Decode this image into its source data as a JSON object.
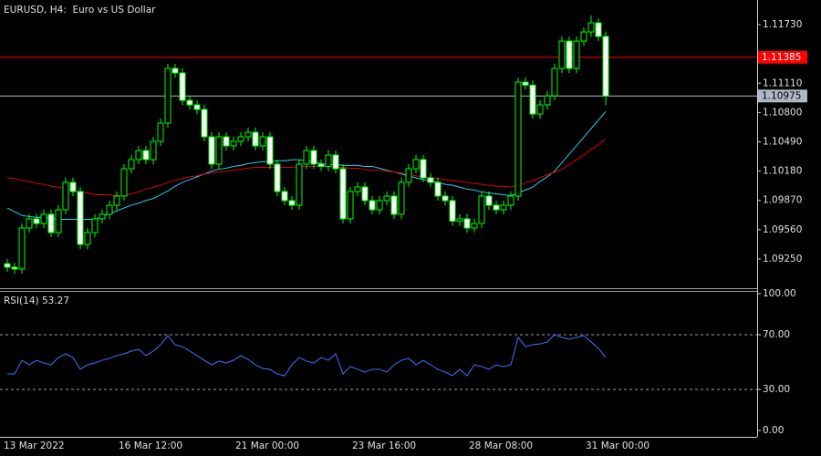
{
  "chart_data": [
    {
      "type": "candlestick",
      "title": "EURUSD, H4:  Euro vs US Dollar",
      "categories": [
        "13 Mar 2022",
        null,
        null,
        null,
        null,
        null,
        null,
        null,
        null,
        null,
        null,
        null,
        null,
        null,
        null,
        null,
        "16 Mar 12:00",
        null,
        null,
        null,
        null,
        null,
        null,
        null,
        null,
        null,
        null,
        null,
        null,
        null,
        null,
        null,
        "21 Mar 00:00",
        null,
        null,
        null,
        null,
        null,
        null,
        null,
        null,
        null,
        null,
        null,
        null,
        null,
        null,
        null,
        "23 Mar 16:00",
        null,
        null,
        null,
        null,
        null,
        null,
        null,
        null,
        null,
        null,
        null,
        null,
        null,
        null,
        null,
        "28 Mar 08:00",
        null,
        null,
        null,
        null,
        null,
        null,
        null,
        null,
        null,
        null,
        null,
        null,
        null,
        null,
        null,
        "31 Mar 00:00",
        null,
        null
      ],
      "open": [
        1.092,
        1.09163,
        1.09144,
        1.09578,
        1.09675,
        1.09626,
        1.09723,
        1.0953,
        1.09771,
        1.10061,
        1.09964,
        1.09404,
        1.0953,
        1.09675,
        1.09723,
        1.09819,
        1.09916,
        1.10205,
        1.10302,
        1.10398,
        1.10302,
        1.10495,
        1.10688,
        1.11267,
        1.11219,
        1.10929,
        1.10881,
        1.10833,
        1.10543,
        1.10254,
        1.10543,
        1.10447,
        1.10495,
        1.10543,
        1.10591,
        1.10447,
        1.10543,
        1.10254,
        1.09964,
        1.09868,
        1.09819,
        1.10254,
        1.10398,
        1.10254,
        1.1023,
        1.1035,
        1.10205,
        1.09675,
        1.09964,
        1.10012,
        1.09868,
        1.09771,
        1.09868,
        1.09916,
        1.09723,
        1.10061,
        1.10205,
        1.10302,
        1.10109,
        1.10061,
        1.09916,
        1.09868,
        1.0965,
        1.09675,
        1.09578,
        1.09626,
        1.09916,
        1.09819,
        1.09771,
        1.09819,
        1.09916,
        1.11122,
        1.1109,
        1.10784,
        1.10881,
        1.10977,
        1.11267,
        1.11556,
        1.11267,
        1.11556,
        1.11653,
        1.11749,
        1.11605
      ],
      "high": [
        1.0925,
        1.09213,
        1.09628,
        1.09725,
        1.09725,
        1.09773,
        1.09773,
        1.09821,
        1.10111,
        1.10111,
        1.10014,
        1.0958,
        1.09725,
        1.09773,
        1.09869,
        1.09966,
        1.10255,
        1.10352,
        1.10448,
        1.10448,
        1.10545,
        1.10738,
        1.11317,
        1.11317,
        1.11269,
        1.10979,
        1.10931,
        1.10883,
        1.10593,
        1.10593,
        1.10593,
        1.10545,
        1.10593,
        1.10641,
        1.10641,
        1.10593,
        1.10593,
        1.10304,
        1.10014,
        1.09918,
        1.10304,
        1.10448,
        1.10448,
        1.10304,
        1.104,
        1.104,
        1.10255,
        1.10014,
        1.10062,
        1.10062,
        1.09918,
        1.09918,
        1.09966,
        1.09966,
        1.10111,
        1.10255,
        1.10352,
        1.10352,
        1.10159,
        1.10111,
        1.09966,
        1.09918,
        1.09725,
        1.09725,
        1.09676,
        1.09966,
        1.09966,
        1.09869,
        1.09869,
        1.09966,
        1.11172,
        1.11172,
        1.1114,
        1.10931,
        1.11027,
        1.11317,
        1.11606,
        1.11606,
        1.11606,
        1.11703,
        1.11829,
        1.11799,
        1.11655
      ],
      "low": [
        1.09113,
        1.09094,
        1.09094,
        1.09528,
        1.09576,
        1.09576,
        1.0948,
        1.0948,
        1.09721,
        1.09914,
        1.09354,
        1.09354,
        1.0948,
        1.09625,
        1.09673,
        1.09769,
        1.09866,
        1.10155,
        1.10252,
        1.10252,
        1.10252,
        1.10445,
        1.10638,
        1.11169,
        1.10879,
        1.10831,
        1.10783,
        1.10493,
        1.10204,
        1.10204,
        1.10397,
        1.10397,
        1.10445,
        1.10493,
        1.10397,
        1.10397,
        1.10204,
        1.09914,
        1.09818,
        1.09769,
        1.09769,
        1.10204,
        1.10204,
        1.1018,
        1.1018,
        1.10155,
        1.09625,
        1.09625,
        1.09914,
        1.09818,
        1.09721,
        1.09721,
        1.09818,
        1.09673,
        1.09673,
        1.10011,
        1.10155,
        1.10059,
        1.10011,
        1.09866,
        1.09818,
        1.096,
        1.096,
        1.09528,
        1.09528,
        1.09576,
        1.09769,
        1.09721,
        1.09721,
        1.09769,
        1.09866,
        1.1104,
        1.10734,
        1.10734,
        1.10831,
        1.10927,
        1.11217,
        1.11217,
        1.11217,
        1.11506,
        1.11603,
        1.11555,
        1.1088
      ],
      "close": [
        1.09163,
        1.09144,
        1.09578,
        1.09675,
        1.09626,
        1.09723,
        1.0953,
        1.09771,
        1.10061,
        1.09964,
        1.09404,
        1.0953,
        1.09675,
        1.09723,
        1.09819,
        1.09916,
        1.10205,
        1.10302,
        1.10398,
        1.10302,
        1.10495,
        1.10688,
        1.11267,
        1.11219,
        1.10929,
        1.10881,
        1.10833,
        1.10543,
        1.10254,
        1.10543,
        1.10447,
        1.10495,
        1.10543,
        1.10591,
        1.10447,
        1.10543,
        1.10254,
        1.09964,
        1.09868,
        1.09819,
        1.10254,
        1.10398,
        1.10254,
        1.1023,
        1.1035,
        1.10205,
        1.09675,
        1.09964,
        1.10012,
        1.09868,
        1.09771,
        1.09868,
        1.09916,
        1.09723,
        1.10061,
        1.10205,
        1.10302,
        1.10109,
        1.10061,
        1.09916,
        1.09868,
        1.0965,
        1.09675,
        1.09578,
        1.09626,
        1.09916,
        1.09819,
        1.09771,
        1.09819,
        1.09916,
        1.11122,
        1.1109,
        1.10784,
        1.10881,
        1.10977,
        1.11267,
        1.11556,
        1.11267,
        1.11556,
        1.11653,
        1.11749,
        1.11605,
        1.10975
      ],
      "line_color": "#00ff00",
      "up_fill": "#000000",
      "down_fill": "#ffffff",
      "overlays": [
        {
          "color": "#20d0f0",
          "values": [
            1.0979,
            1.0975,
            1.0971,
            1.097,
            1.0969,
            1.0969,
            1.0968,
            1.0967,
            1.0967,
            1.0967,
            1.0967,
            1.0967,
            1.0967,
            1.097,
            1.0973,
            1.0976,
            1.0979,
            1.0982,
            1.0984,
            1.0987,
            1.0989,
            1.0993,
            1.0997,
            1.1002,
            1.1006,
            1.1009,
            1.1012,
            1.1015,
            1.1018,
            1.102,
            1.1021,
            1.1023,
            1.1024,
            1.1026,
            1.1027,
            1.1028,
            1.1028,
            1.1029,
            1.1029,
            1.103,
            1.103,
            1.1029,
            1.1028,
            1.1026,
            1.1025,
            1.1025,
            1.1024,
            1.1024,
            1.1024,
            1.1023,
            1.1023,
            1.1021,
            1.1019,
            1.1017,
            1.1015,
            1.1013,
            1.1011,
            1.1009,
            1.1008,
            1.1006,
            1.1004,
            1.1003,
            1.1001,
            1.0999,
            1.0998,
            1.0996,
            1.0995,
            1.0994,
            1.0993,
            1.0992,
            1.0995,
            1.0998,
            1.1001,
            1.1007,
            1.1012,
            1.1018,
            1.1027,
            1.1036,
            1.1045,
            1.1054,
            1.1063,
            1.1072,
            1.1081
          ]
        },
        {
          "color": "#e00000",
          "values": [
            1.1011,
            1.101,
            1.1008,
            1.1007,
            1.1005,
            1.1004,
            1.1002,
            1.1001,
            1.0999,
            1.0998,
            1.0996,
            1.0995,
            1.0993,
            1.0993,
            1.0993,
            1.0992,
            1.0992,
            1.0994,
            1.0996,
            1.0999,
            1.1001,
            1.1003,
            1.1006,
            1.1008,
            1.101,
            1.1012,
            1.1013,
            1.1015,
            1.1016,
            1.1017,
            1.1018,
            1.1019,
            1.102,
            1.1021,
            1.1022,
            1.1022,
            1.1022,
            1.1022,
            1.1022,
            1.1022,
            1.1023,
            1.1023,
            1.1023,
            1.1023,
            1.1023,
            1.1022,
            1.1022,
            1.1021,
            1.1021,
            1.102,
            1.1019,
            1.1019,
            1.1018,
            1.1017,
            1.1016,
            1.1015,
            1.1013,
            1.1012,
            1.1011,
            1.101,
            1.1009,
            1.1008,
            1.1007,
            1.1006,
            1.1005,
            1.1004,
            1.1003,
            1.1002,
            1.1002,
            1.1001,
            1.1003,
            1.1006,
            1.1008,
            1.1011,
            1.1014,
            1.1017,
            1.102,
            1.1025,
            1.103,
            1.1035,
            1.1041,
            1.1046,
            1.1052
          ]
        }
      ],
      "hlines": [
        {
          "value": 1.11385,
          "label": "1.11385",
          "color": "#ff0000",
          "text_color": "#ffffff"
        },
        {
          "value": 1.10975,
          "label": "1.10975",
          "color": "#b0b8c8",
          "text_color": "#000000"
        }
      ],
      "ylim": [
        1.08941,
        1.11991
      ],
      "yticks": [
        {
          "value": 1.1173,
          "label": "1.11730"
        },
        {
          "value": 1.1111,
          "label": "1.11110"
        },
        {
          "value": 1.108,
          "label": "1.10800"
        },
        {
          "value": 1.1049,
          "label": "1.10490"
        },
        {
          "value": 1.1018,
          "label": "1.10180"
        },
        {
          "value": 1.0987,
          "label": "1.09870"
        },
        {
          "value": 1.0956,
          "label": "1.09560"
        },
        {
          "value": 1.0925,
          "label": "1.09250"
        }
      ]
    },
    {
      "type": "line",
      "title": "RSI(14) 53.27",
      "color": "#3a78ff",
      "values": [
        41.3,
        41.3,
        51.3,
        48.0,
        51.3,
        49.3,
        48.0,
        53.3,
        56.0,
        53.3,
        44.7,
        48.0,
        49.3,
        51.3,
        52.7,
        54.7,
        56.0,
        58.0,
        59.3,
        54.7,
        58.0,
        62.7,
        69.3,
        62.7,
        61.3,
        58.0,
        54.7,
        51.3,
        48.0,
        50.7,
        49.3,
        51.3,
        54.7,
        52.0,
        48.0,
        45.3,
        44.7,
        41.3,
        40.0,
        48.0,
        53.3,
        50.7,
        49.3,
        53.3,
        51.3,
        56.0,
        41.3,
        46.7,
        44.7,
        42.7,
        44.7,
        44.7,
        42.7,
        48.0,
        51.3,
        52.7,
        48.0,
        51.3,
        48.0,
        44.7,
        42.7,
        40.0,
        44.7,
        40.0,
        48.0,
        46.7,
        44.7,
        48.0,
        46.7,
        48.0,
        68.0,
        61.3,
        62.7,
        63.3,
        64.7,
        70.0,
        68.0,
        66.7,
        68.0,
        69.3,
        64.7,
        60.0,
        53.27
      ],
      "levels": [
        70,
        30
      ],
      "ylim": [
        -4.67,
        102
      ],
      "yticks": [
        {
          "value": 100,
          "label": "100.00"
        },
        {
          "value": 70,
          "label": "70.00"
        },
        {
          "value": 30,
          "label": "30.00"
        },
        {
          "value": 0,
          "label": "0.00"
        }
      ]
    }
  ]
}
